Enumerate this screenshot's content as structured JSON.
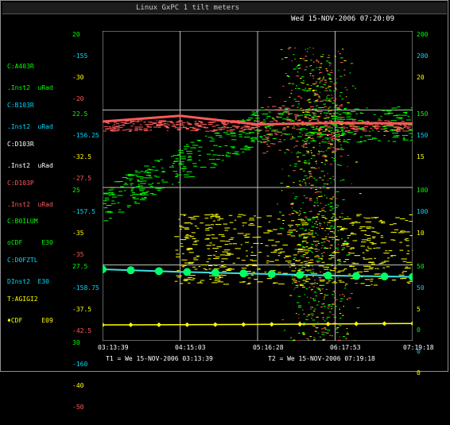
{
  "window": {
    "title": "Linux GxPC 1  tilt meters"
  },
  "header": {
    "datetime": "Wed 15-NOV-2006 07:20:09"
  },
  "colors": {
    "green": "#00ff00",
    "cyan": "#00d8ff",
    "red": "#ff5a5a",
    "yellow": "#ffff00",
    "white": "#ffffff",
    "grid": "#bfbfbf"
  },
  "channels": [
    {
      "name_line1": "C:A403R",
      "name_line2": ".Inst2  uRad",
      "color": "#00ff00"
    },
    {
      "name_line1": "C:B103R",
      "name_line2": ".Inst2  uRad",
      "color": "#00d8ff"
    },
    {
      "name_line1": "C:D103R",
      "name_line2": ".Inst2  uRad",
      "color": "#ffffff"
    },
    {
      "name_line1": "C:D103P",
      "name_line2": ".Inst2  uRad",
      "color": "#ff5a5a"
    },
    {
      "name_line1": "C:B0ILUM",
      "name_line2": "oCDF     E30",
      "color": "#00ff00"
    },
    {
      "name_line1": "C:D0FZTL",
      "name_line2": "DInst2  E30",
      "color": "#00d8ff"
    },
    {
      "name_line1": "T:AGIGI2",
      "name_line2": "♦CDF     E09",
      "color": "#ffff00"
    }
  ],
  "left_scales": [
    [
      "20",
      "-155",
      "-30",
      "-20"
    ],
    [
      "22.5",
      "-156.25",
      "-32.5",
      "-27.5"
    ],
    [
      "25",
      "-157.5",
      "-35",
      "-35"
    ],
    [
      "27.5",
      "-158.75",
      "-37.5",
      "-42.5"
    ],
    [
      "30",
      "-160",
      "-40",
      "-50"
    ]
  ],
  "right_scales": [
    [
      "200",
      "200",
      "20"
    ],
    [
      "150",
      "150",
      "15"
    ],
    [
      "100",
      "100",
      "10"
    ],
    [
      "50",
      "50",
      "5"
    ],
    [
      "0",
      "0",
      "0"
    ]
  ],
  "x_ticks": [
    "03:13:39",
    "04:15:03",
    "05:16:28",
    "06:17:53",
    "07:19:18"
  ],
  "footer": {
    "t1": "T1 = We 15-NOV-2006 03:13:39",
    "t2": "T2 = We 15-NOV-2006 07:19:18"
  },
  "chart_data": {
    "type": "line",
    "x": [
      "03:13:39",
      "04:15:03",
      "05:16:28",
      "06:17:53",
      "07:19:18"
    ],
    "series": [
      {
        "name": "C:D103P",
        "values": [
          -32.0,
          -30.8,
          -32.6,
          -32.3,
          -32.4
        ]
      },
      {
        "name": "C:D0FZTL",
        "values": [
          -37.0,
          -37.4,
          -37.7,
          -38.0,
          -38.2
        ]
      },
      {
        "name": "T:AGIGI2",
        "values": [
          1.0,
          1.1,
          1.3,
          1.6,
          1.9
        ]
      }
    ]
  }
}
